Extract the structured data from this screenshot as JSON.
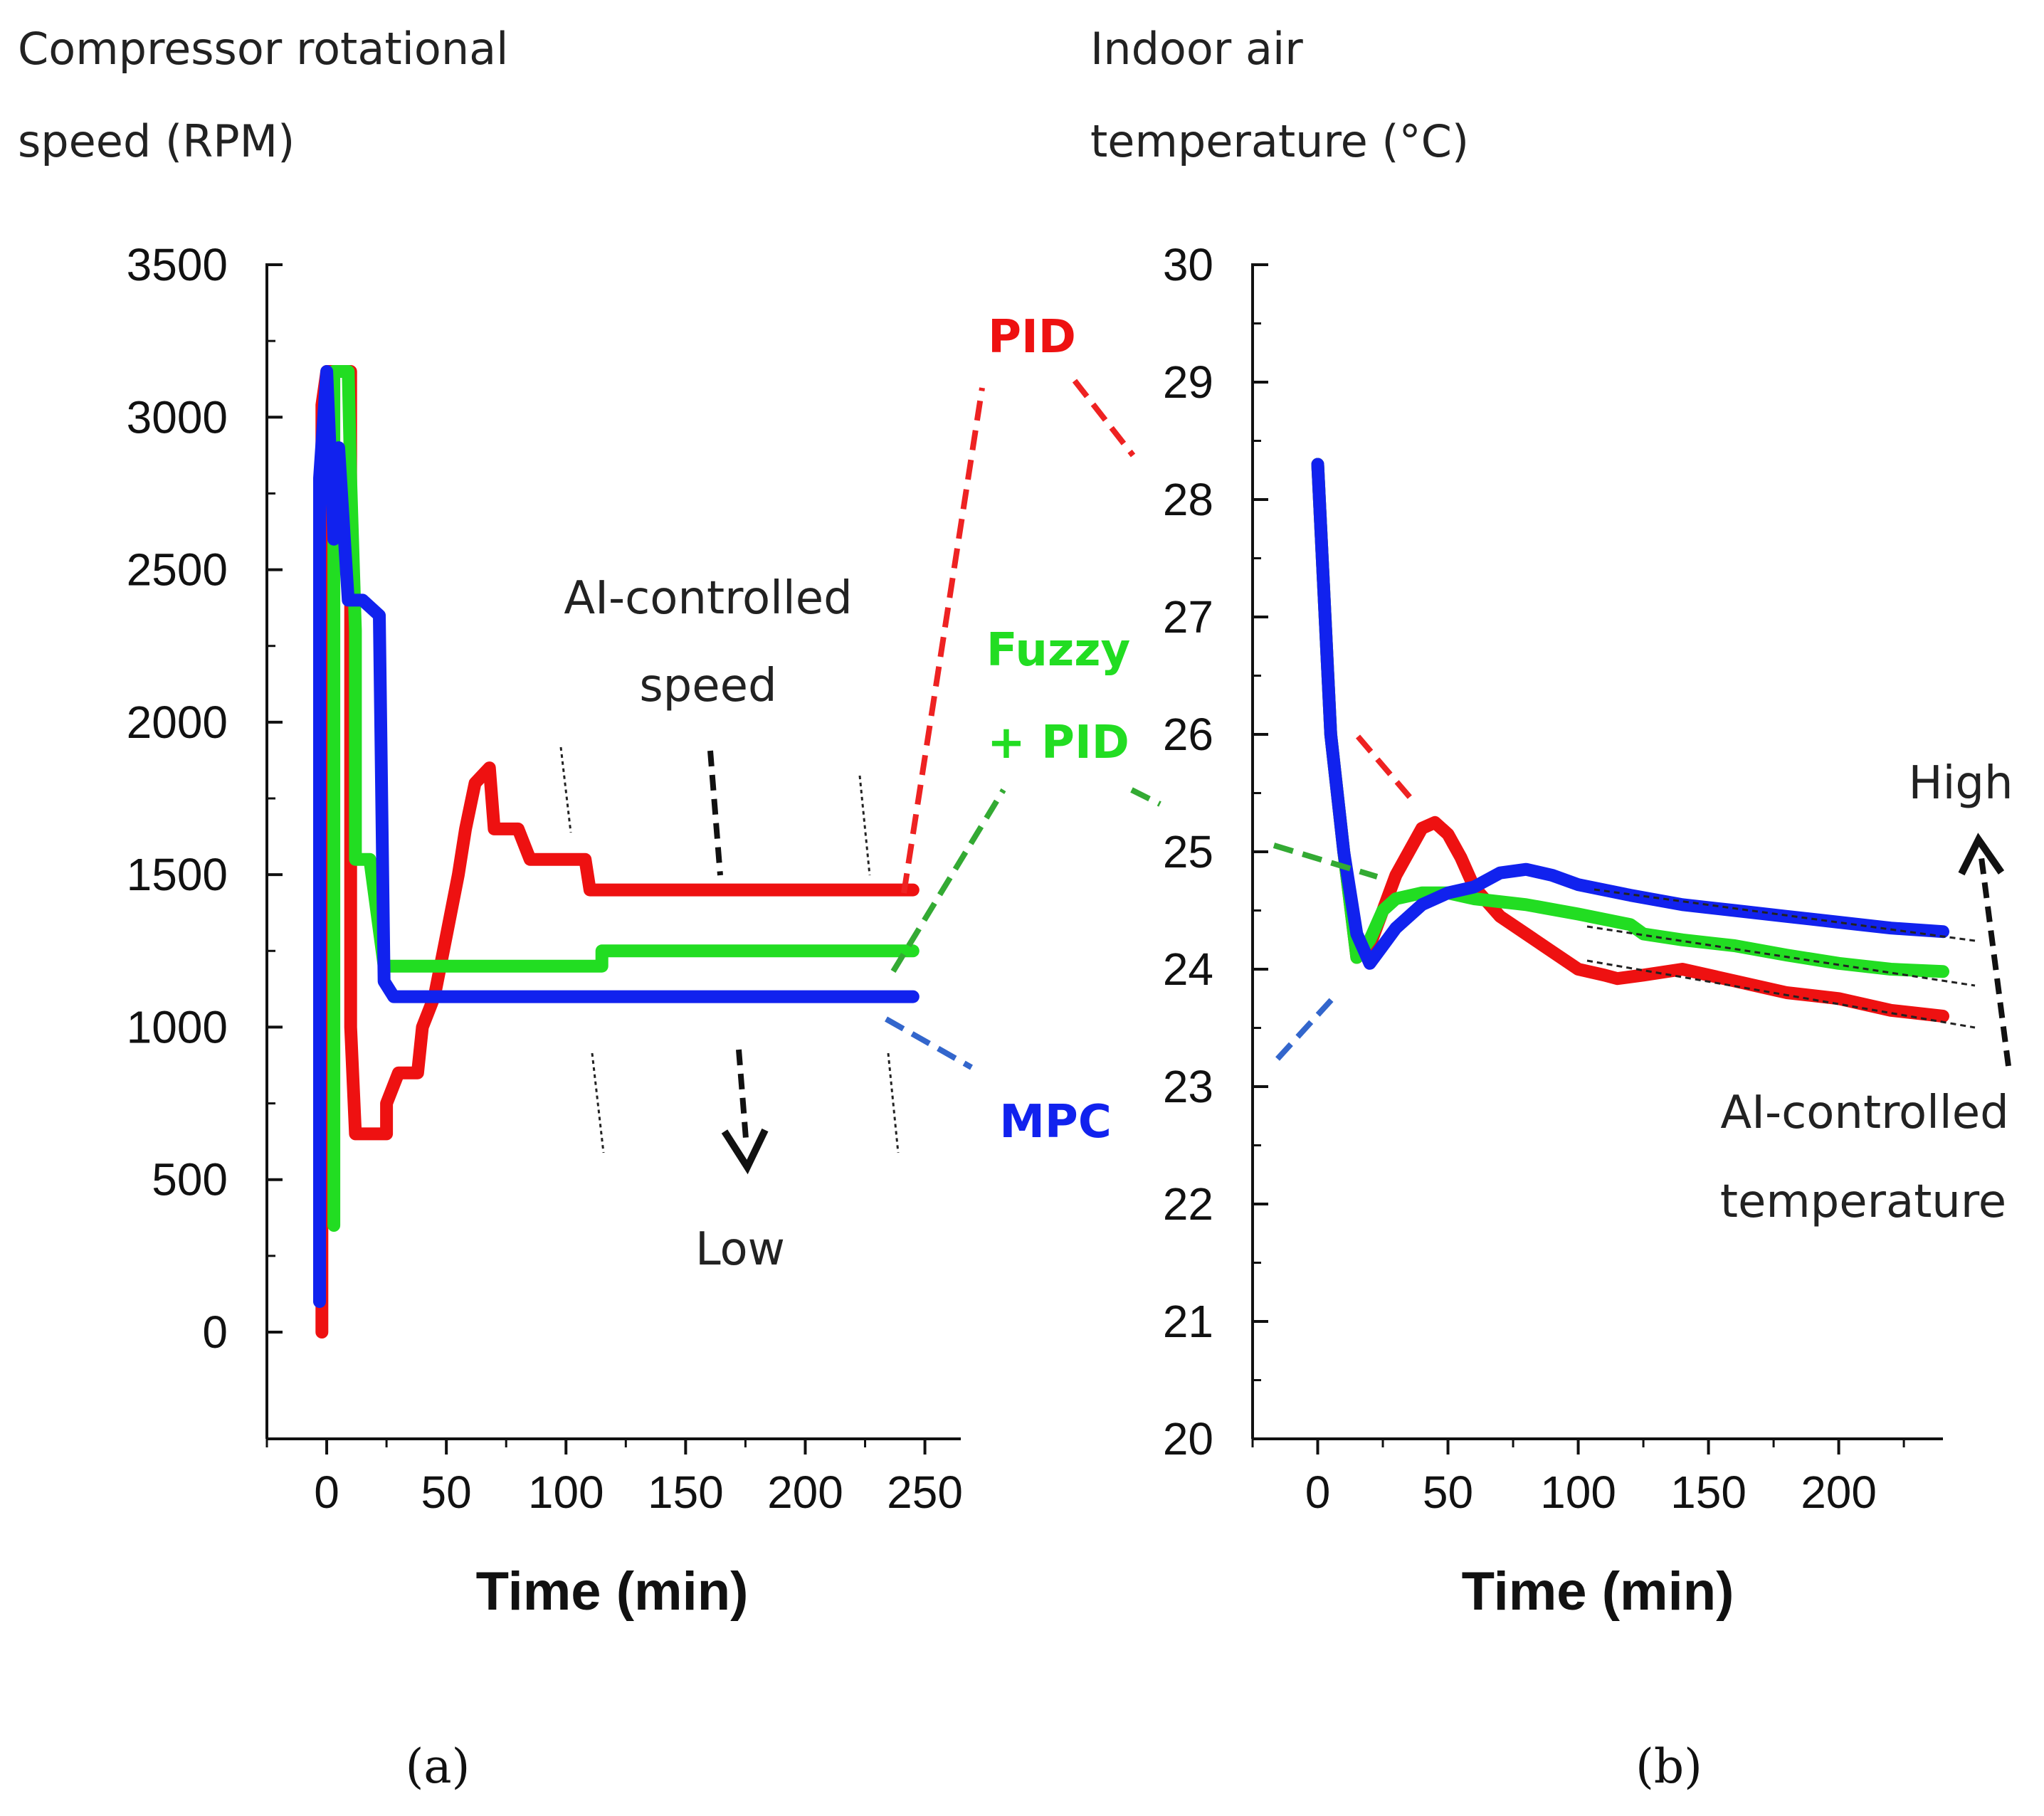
{
  "chart_data": [
    {
      "id": "a",
      "type": "line",
      "panel_label": "(a)",
      "ylabel_line1": "Compressor rotational",
      "ylabel_line2": "speed (RPM)",
      "xlabel": "Time (min)",
      "xlim": [
        -25,
        265
      ],
      "ylim": [
        -350,
        3500
      ],
      "xticks": [
        0,
        50,
        100,
        150,
        200,
        250
      ],
      "yticks": [
        0,
        500,
        1000,
        1500,
        2000,
        2500,
        3000,
        3500
      ],
      "series": [
        {
          "name": "PID",
          "color": "#ee1111",
          "points": [
            [
              -2,
              0
            ],
            [
              -2,
              3040
            ],
            [
              0,
              3150
            ],
            [
              5,
              3150
            ],
            [
              10,
              3150
            ],
            [
              10,
              1000
            ],
            [
              12,
              650
            ],
            [
              25,
              650
            ],
            [
              25,
              750
            ],
            [
              30,
              850
            ],
            [
              38,
              850
            ],
            [
              40,
              1000
            ],
            [
              45,
              1100
            ],
            [
              50,
              1300
            ],
            [
              55,
              1500
            ],
            [
              58,
              1650
            ],
            [
              62,
              1800
            ],
            [
              68,
              1850
            ],
            [
              70,
              1650
            ],
            [
              80,
              1650
            ],
            [
              85,
              1550
            ],
            [
              100,
              1550
            ],
            [
              108,
              1550
            ],
            [
              110,
              1450
            ],
            [
              130,
              1450
            ],
            [
              245,
              1450
            ]
          ]
        },
        {
          "name": "Fuzzy + PID",
          "color": "#22dd22",
          "points": [
            [
              3,
              350
            ],
            [
              3,
              3150
            ],
            [
              5,
              3150
            ],
            [
              9,
              3150
            ],
            [
              10,
              2800
            ],
            [
              12,
              2300
            ],
            [
              12,
              1550
            ],
            [
              18,
              1550
            ],
            [
              24,
              1200
            ],
            [
              115,
              1200
            ],
            [
              115,
              1250
            ],
            [
              245,
              1250
            ]
          ]
        },
        {
          "name": "MPC",
          "color": "#1122ee",
          "points": [
            [
              -3,
              100
            ],
            [
              -3,
              2800
            ],
            [
              0,
              3150
            ],
            [
              3,
              2600
            ],
            [
              5,
              2900
            ],
            [
              7,
              2650
            ],
            [
              9,
              2400
            ],
            [
              15,
              2400
            ],
            [
              22,
              2350
            ],
            [
              24,
              1150
            ],
            [
              28,
              1100
            ],
            [
              245,
              1100
            ]
          ]
        }
      ],
      "annotations": {
        "ai_line1": "AI-controlled",
        "ai_line2": "speed",
        "low": "Low"
      }
    },
    {
      "id": "b",
      "type": "line",
      "panel_label": "(b)",
      "ylabel_line1": "Indoor air",
      "ylabel_line2": "temperature (°C)",
      "xlabel": "Time (min)",
      "xlim": [
        -25,
        240
      ],
      "ylim": [
        20,
        30
      ],
      "xticks": [
        0,
        50,
        100,
        150,
        200
      ],
      "yticks": [
        20,
        21,
        22,
        23,
        24,
        25,
        26,
        27,
        28,
        29,
        30
      ],
      "series": [
        {
          "name": "PID",
          "color": "#ee1111",
          "points": [
            [
              0,
              28.3
            ],
            [
              5,
              26
            ],
            [
              10,
              25
            ],
            [
              15,
              24.1
            ],
            [
              20,
              24.2
            ],
            [
              25,
              24.5
            ],
            [
              30,
              24.8
            ],
            [
              35,
              25
            ],
            [
              40,
              25.2
            ],
            [
              45,
              25.25
            ],
            [
              50,
              25.15
            ],
            [
              55,
              24.95
            ],
            [
              60,
              24.7
            ],
            [
              70,
              24.45
            ],
            [
              80,
              24.3
            ],
            [
              90,
              24.15
            ],
            [
              100,
              24
            ],
            [
              110,
              23.95
            ],
            [
              115,
              23.92
            ],
            [
              125,
              23.95
            ],
            [
              140,
              24
            ],
            [
              160,
              23.9
            ],
            [
              180,
              23.8
            ],
            [
              200,
              23.75
            ],
            [
              220,
              23.65
            ],
            [
              240,
              23.6
            ]
          ]
        },
        {
          "name": "Fuzzy + PID",
          "color": "#22dd22",
          "points": [
            [
              0,
              28.3
            ],
            [
              5,
              26
            ],
            [
              10,
              25
            ],
            [
              15,
              24.1
            ],
            [
              20,
              24.25
            ],
            [
              25,
              24.5
            ],
            [
              30,
              24.6
            ],
            [
              40,
              24.65
            ],
            [
              50,
              24.65
            ],
            [
              60,
              24.6
            ],
            [
              80,
              24.55
            ],
            [
              100,
              24.47
            ],
            [
              120,
              24.38
            ],
            [
              125,
              24.3
            ],
            [
              140,
              24.25
            ],
            [
              160,
              24.2
            ],
            [
              180,
              24.12
            ],
            [
              200,
              24.05
            ],
            [
              220,
              24
            ],
            [
              240,
              23.98
            ]
          ]
        },
        {
          "name": "MPC",
          "color": "#1122ee",
          "points": [
            [
              0,
              28.3
            ],
            [
              5,
              26
            ],
            [
              10,
              25
            ],
            [
              15,
              24.3
            ],
            [
              20,
              24.05
            ],
            [
              25,
              24.2
            ],
            [
              30,
              24.35
            ],
            [
              40,
              24.55
            ],
            [
              50,
              24.65
            ],
            [
              60,
              24.7
            ],
            [
              70,
              24.82
            ],
            [
              80,
              24.85
            ],
            [
              90,
              24.8
            ],
            [
              100,
              24.72
            ],
            [
              120,
              24.63
            ],
            [
              140,
              24.55
            ],
            [
              160,
              24.5
            ],
            [
              180,
              24.45
            ],
            [
              200,
              24.4
            ],
            [
              220,
              24.35
            ],
            [
              240,
              24.32
            ]
          ]
        }
      ],
      "annotations": {
        "high": "High",
        "ai_line1": "AI-controlled",
        "ai_line2": "temperature"
      }
    }
  ],
  "legend": {
    "pid": "PID",
    "fuzzy_line1": "Fuzzy",
    "fuzzy_line2": "+ PID",
    "mpc": "MPC"
  },
  "colors": {
    "pid": "#ee1111",
    "fuzzy": "#22dd22",
    "mpc": "#1122ee",
    "pid_dash": "#ee2222",
    "fuzzy_dash": "#33aa33",
    "mpc_dash": "#3366cc"
  }
}
